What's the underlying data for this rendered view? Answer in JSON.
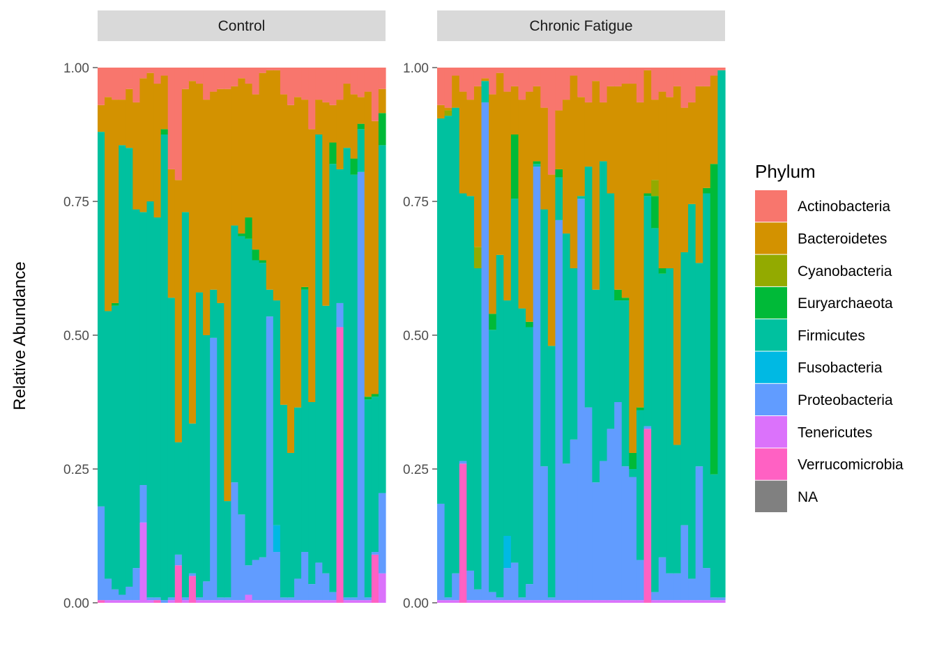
{
  "chart_data": {
    "type": "bar",
    "stacked": true,
    "ylabel": "Relative Abundance",
    "xlabel": "",
    "ylim": [
      0,
      1
    ],
    "yticks": [
      "0.00",
      "0.25",
      "0.50",
      "0.75",
      "1.00"
    ],
    "legend": {
      "title": "Phylum",
      "placement": "right",
      "entries": [
        {
          "name": "Actinobacteria",
          "color": "#F8766D"
        },
        {
          "name": "Bacteroidetes",
          "color": "#D39200"
        },
        {
          "name": "Cyanobacteria",
          "color": "#93AA00"
        },
        {
          "name": "Euryarchaeota",
          "color": "#00BA38"
        },
        {
          "name": "Firmicutes",
          "color": "#00C19F"
        },
        {
          "name": "Fusobacteria",
          "color": "#00B9E3"
        },
        {
          "name": "Proteobacteria",
          "color": "#619CFF"
        },
        {
          "name": "Tenericutes",
          "color": "#DB72FB"
        },
        {
          "name": "Verrucomicrobia",
          "color": "#FF61C3"
        },
        {
          "name": "NA",
          "color": "#808080"
        }
      ]
    },
    "panels": [
      {
        "label": "Control",
        "samples": [
          {
            "Verrucomicrobia": 0.005,
            "Proteobacteria": 0.175,
            "Firmicutes": 0.7,
            "Bacteroidetes": 0.05,
            "Actinobacteria": 0.07
          },
          {
            "Tenericutes": 0.005,
            "Proteobacteria": 0.04,
            "Firmicutes": 0.5,
            "Bacteroidetes": 0.4,
            "Actinobacteria": 0.055
          },
          {
            "Tenericutes": 0.005,
            "Proteobacteria": 0.02,
            "Firmicutes": 0.53,
            "Euryarchaeota": 0.005,
            "Bacteroidetes": 0.38,
            "Actinobacteria": 0.06
          },
          {
            "Tenericutes": 0.005,
            "Proteobacteria": 0.01,
            "Firmicutes": 0.84,
            "Bacteroidetes": 0.085,
            "Actinobacteria": 0.06
          },
          {
            "Tenericutes": 0.005,
            "Proteobacteria": 0.025,
            "Firmicutes": 0.82,
            "Bacteroidetes": 0.11,
            "Actinobacteria": 0.04
          },
          {
            "Tenericutes": 0.005,
            "Proteobacteria": 0.06,
            "Firmicutes": 0.67,
            "Bacteroidetes": 0.2,
            "Actinobacteria": 0.065
          },
          {
            "Tenericutes": 0.15,
            "Proteobacteria": 0.07,
            "Firmicutes": 0.51,
            "Bacteroidetes": 0.25,
            "Actinobacteria": 0.02
          },
          {
            "Tenericutes": 0.005,
            "Proteobacteria": 0.005,
            "Firmicutes": 0.74,
            "Bacteroidetes": 0.24,
            "Actinobacteria": 0.01
          },
          {
            "Verrucomicrobia": 0.005,
            "Proteobacteria": 0.005,
            "Firmicutes": 0.71,
            "Bacteroidetes": 0.25,
            "Actinobacteria": 0.03
          },
          {
            "Proteobacteria": 0.005,
            "Firmicutes": 0.87,
            "Euryarchaeota": 0.01,
            "Bacteroidetes": 0.1,
            "Actinobacteria": 0.015
          },
          {
            "Tenericutes": 0.005,
            "Proteobacteria": 0.005,
            "Firmicutes": 0.56,
            "Bacteroidetes": 0.24,
            "Actinobacteria": 0.19
          },
          {
            "Verrucomicrobia": 0.07,
            "Proteobacteria": 0.02,
            "Firmicutes": 0.21,
            "Bacteroidetes": 0.49,
            "Actinobacteria": 0.21
          },
          {
            "Tenericutes": 0.005,
            "Proteobacteria": 0.005,
            "Firmicutes": 0.72,
            "Bacteroidetes": 0.23,
            "Actinobacteria": 0.04
          },
          {
            "Verrucomicrobia": 0.05,
            "Proteobacteria": 0.005,
            "Firmicutes": 0.28,
            "Bacteroidetes": 0.64,
            "Actinobacteria": 0.025
          },
          {
            "Tenericutes": 0.005,
            "Proteobacteria": 0.005,
            "Firmicutes": 0.57,
            "Bacteroidetes": 0.39,
            "Actinobacteria": 0.03
          },
          {
            "Tenericutes": 0.005,
            "Proteobacteria": 0.035,
            "Firmicutes": 0.46,
            "Bacteroidetes": 0.44,
            "Actinobacteria": 0.06
          },
          {
            "Tenericutes": 0.005,
            "Proteobacteria": 0.49,
            "Firmicutes": 0.09,
            "Bacteroidetes": 0.37,
            "Actinobacteria": 0.045
          },
          {
            "Tenericutes": 0.005,
            "Proteobacteria": 0.005,
            "Firmicutes": 0.55,
            "Bacteroidetes": 0.4,
            "Actinobacteria": 0.04
          },
          {
            "Tenericutes": 0.005,
            "Proteobacteria": 0.005,
            "Firmicutes": 0.18,
            "Bacteroidetes": 0.77,
            "Actinobacteria": 0.04
          },
          {
            "Tenericutes": 0.005,
            "Proteobacteria": 0.22,
            "Firmicutes": 0.48,
            "Bacteroidetes": 0.26,
            "Actinobacteria": 0.035
          },
          {
            "Tenericutes": 0.005,
            "Proteobacteria": 0.16,
            "Firmicutes": 0.52,
            "Euryarchaeota": 0.005,
            "Bacteroidetes": 0.29,
            "Actinobacteria": 0.02
          },
          {
            "Tenericutes": 0.015,
            "Proteobacteria": 0.055,
            "Firmicutes": 0.61,
            "Euryarchaeota": 0.04,
            "Bacteroidetes": 0.25,
            "Actinobacteria": 0.03
          },
          {
            "Tenericutes": 0.005,
            "Proteobacteria": 0.075,
            "Firmicutes": 0.56,
            "Euryarchaeota": 0.02,
            "Bacteroidetes": 0.29,
            "Actinobacteria": 0.05
          },
          {
            "Tenericutes": 0.005,
            "Proteobacteria": 0.08,
            "Firmicutes": 0.55,
            "Euryarchaeota": 0.005,
            "Bacteroidetes": 0.35,
            "Actinobacteria": 0.01
          },
          {
            "Tenericutes": 0.005,
            "Proteobacteria": 0.53,
            "Firmicutes": 0.05,
            "Bacteroidetes": 0.41,
            "Actinobacteria": 0.005
          },
          {
            "Tenericutes": 0.005,
            "Fusobacteria": 0.05,
            "Proteobacteria": 0.09,
            "Firmicutes": 0.42,
            "Bacteroidetes": 0.43,
            "Actinobacteria": 0.005
          },
          {
            "Tenericutes": 0.005,
            "Proteobacteria": 0.005,
            "Firmicutes": 0.36,
            "Bacteroidetes": 0.58,
            "Actinobacteria": 0.05
          },
          {
            "Tenericutes": 0.005,
            "Proteobacteria": 0.005,
            "Firmicutes": 0.27,
            "Bacteroidetes": 0.65,
            "Actinobacteria": 0.07
          },
          {
            "Tenericutes": 0.005,
            "Proteobacteria": 0.04,
            "Firmicutes": 0.32,
            "Bacteroidetes": 0.58,
            "Actinobacteria": 0.055
          },
          {
            "Tenericutes": 0.005,
            "Proteobacteria": 0.09,
            "Firmicutes": 0.49,
            "Euryarchaeota": 0.005,
            "Bacteroidetes": 0.35,
            "Actinobacteria": 0.06
          },
          {
            "Tenericutes": 0.005,
            "Proteobacteria": 0.03,
            "Firmicutes": 0.34,
            "Bacteroidetes": 0.51,
            "Actinobacteria": 0.115
          },
          {
            "Tenericutes": 0.005,
            "Proteobacteria": 0.07,
            "Firmicutes": 0.8,
            "Bacteroidetes": 0.065,
            "Actinobacteria": 0.06
          },
          {
            "Tenericutes": 0.005,
            "Proteobacteria": 0.05,
            "Firmicutes": 0.5,
            "Bacteroidetes": 0.38,
            "Actinobacteria": 0.065
          },
          {
            "Tenericutes": 0.005,
            "Proteobacteria": 0.015,
            "Firmicutes": 0.8,
            "Euryarchaeota": 0.04,
            "Bacteroidetes": 0.07,
            "Actinobacteria": 0.07
          },
          {
            "Verrucomicrobia": 0.515,
            "Proteobacteria": 0.045,
            "Firmicutes": 0.25,
            "Bacteroidetes": 0.13,
            "Actinobacteria": 0.06
          },
          {
            "Tenericutes": 0.005,
            "Proteobacteria": 0.005,
            "Firmicutes": 0.84,
            "Bacteroidetes": 0.12,
            "Actinobacteria": 0.03
          },
          {
            "Tenericutes": 0.005,
            "Proteobacteria": 0.005,
            "Firmicutes": 0.79,
            "Euryarchaeota": 0.03,
            "Bacteroidetes": 0.12,
            "Actinobacteria": 0.05
          },
          {
            "Tenericutes": 0.005,
            "Proteobacteria": 0.8,
            "Firmicutes": 0.08,
            "Euryarchaeota": 0.01,
            "Bacteroidetes": 0.05,
            "Actinobacteria": 0.055
          },
          {
            "Tenericutes": 0.005,
            "Proteobacteria": 0.005,
            "Firmicutes": 0.37,
            "Euryarchaeota": 0.005,
            "Bacteroidetes": 0.57,
            "Actinobacteria": 0.045
          },
          {
            "Verrucomicrobia": 0.09,
            "Proteobacteria": 0.005,
            "Firmicutes": 0.29,
            "Euryarchaeota": 0.005,
            "Bacteroidetes": 0.51,
            "Actinobacteria": 0.1
          },
          {
            "Tenericutes": 0.055,
            "Proteobacteria": 0.15,
            "Firmicutes": 0.65,
            "Euryarchaeota": 0.06,
            "Bacteroidetes": 0.045,
            "Actinobacteria": 0.04
          }
        ]
      },
      {
        "label": "Chronic Fatigue",
        "samples": [
          {
            "Tenericutes": 0.005,
            "Proteobacteria": 0.18,
            "Firmicutes": 0.72,
            "Bacteroidetes": 0.025,
            "Actinobacteria": 0.07
          },
          {
            "Tenericutes": 0.005,
            "Proteobacteria": 0.005,
            "Firmicutes": 0.9,
            "Cyanobacteria": 0.01,
            "Bacteroidetes": 0.005,
            "Actinobacteria": 0.075
          },
          {
            "Tenericutes": 0.005,
            "Proteobacteria": 0.05,
            "Firmicutes": 0.87,
            "Bacteroidetes": 0.06,
            "Actinobacteria": 0.015
          },
          {
            "Verrucomicrobia": 0.26,
            "Proteobacteria": 0.005,
            "Firmicutes": 0.5,
            "Bacteroidetes": 0.19,
            "Actinobacteria": 0.045
          },
          {
            "Tenericutes": 0.005,
            "Proteobacteria": 0.055,
            "Firmicutes": 0.7,
            "Bacteroidetes": 0.18,
            "Actinobacteria": 0.06
          },
          {
            "Tenericutes": 0.005,
            "Proteobacteria": 0.02,
            "Firmicutes": 0.6,
            "Cyanobacteria": 0.04,
            "Bacteroidetes": 0.3,
            "Actinobacteria": 0.035
          },
          {
            "Tenericutes": 0.005,
            "Proteobacteria": 0.93,
            "Firmicutes": 0.04,
            "Bacteroidetes": 0.005,
            "Actinobacteria": 0.02
          },
          {
            "Tenericutes": 0.005,
            "Proteobacteria": 0.015,
            "Firmicutes": 0.49,
            "Euryarchaeota": 0.03,
            "Bacteroidetes": 0.41,
            "Actinobacteria": 0.05
          },
          {
            "Tenericutes": 0.005,
            "Proteobacteria": 0.005,
            "Firmicutes": 0.64,
            "Bacteroidetes": 0.34,
            "Actinobacteria": 0.01
          },
          {
            "Tenericutes": 0.005,
            "Fusobacteria": 0.06,
            "Proteobacteria": 0.06,
            "Firmicutes": 0.44,
            "Bacteroidetes": 0.39,
            "Actinobacteria": 0.045
          },
          {
            "Tenericutes": 0.005,
            "Proteobacteria": 0.07,
            "Firmicutes": 0.68,
            "Euryarchaeota": 0.12,
            "Bacteroidetes": 0.09,
            "Actinobacteria": 0.035
          },
          {
            "Tenericutes": 0.005,
            "Proteobacteria": 0.005,
            "Firmicutes": 0.54,
            "Bacteroidetes": 0.39,
            "Actinobacteria": 0.06
          },
          {
            "Tenericutes": 0.005,
            "Proteobacteria": 0.03,
            "Firmicutes": 0.48,
            "Euryarchaeota": 0.01,
            "Bacteroidetes": 0.43,
            "Actinobacteria": 0.045
          },
          {
            "Tenericutes": 0.005,
            "Proteobacteria": 0.81,
            "Firmicutes": 0.005,
            "Euryarchaeota": 0.005,
            "Bacteroidetes": 0.14,
            "Actinobacteria": 0.035
          },
          {
            "Tenericutes": 0.005,
            "Proteobacteria": 0.25,
            "Firmicutes": 0.48,
            "Bacteroidetes": 0.19,
            "Actinobacteria": 0.075
          },
          {
            "Tenericutes": 0.005,
            "Proteobacteria": 0.005,
            "Firmicutes": 0.47,
            "Bacteroidetes": 0.32,
            "Actinobacteria": 0.2
          },
          {
            "Tenericutes": 0.005,
            "Proteobacteria": 0.71,
            "Firmicutes": 0.08,
            "Euryarchaeota": 0.015,
            "Bacteroidetes": 0.11,
            "Actinobacteria": 0.08
          },
          {
            "Tenericutes": 0.005,
            "Proteobacteria": 0.255,
            "Firmicutes": 0.43,
            "Bacteroidetes": 0.25,
            "Actinobacteria": 0.06
          },
          {
            "Tenericutes": 0.005,
            "Proteobacteria": 0.3,
            "Firmicutes": 0.32,
            "Bacteroidetes": 0.36,
            "Actinobacteria": 0.015
          },
          {
            "Tenericutes": 0.005,
            "Proteobacteria": 0.75,
            "Firmicutes": 0.005,
            "Bacteroidetes": 0.185,
            "Actinobacteria": 0.055
          },
          {
            "Tenericutes": 0.005,
            "Proteobacteria": 0.36,
            "Firmicutes": 0.45,
            "Bacteroidetes": 0.12,
            "Actinobacteria": 0.065
          },
          {
            "Tenericutes": 0.005,
            "Proteobacteria": 0.22,
            "Firmicutes": 0.36,
            "Bacteroidetes": 0.39,
            "Actinobacteria": 0.025
          },
          {
            "Tenericutes": 0.005,
            "Proteobacteria": 0.26,
            "Firmicutes": 0.56,
            "Bacteroidetes": 0.11,
            "Actinobacteria": 0.065
          },
          {
            "Tenericutes": 0.005,
            "Proteobacteria": 0.32,
            "Firmicutes": 0.44,
            "Bacteroidetes": 0.2,
            "Actinobacteria": 0.035
          },
          {
            "Tenericutes": 0.005,
            "Proteobacteria": 0.37,
            "Firmicutes": 0.19,
            "Euryarchaeota": 0.02,
            "Bacteroidetes": 0.38,
            "Actinobacteria": 0.035
          },
          {
            "Tenericutes": 0.005,
            "Proteobacteria": 0.25,
            "Firmicutes": 0.31,
            "Euryarchaeota": 0.005,
            "Bacteroidetes": 0.4,
            "Actinobacteria": 0.03
          },
          {
            "Tenericutes": 0.005,
            "Proteobacteria": 0.23,
            "Firmicutes": 0.015,
            "Euryarchaeota": 0.03,
            "Bacteroidetes": 0.69,
            "Actinobacteria": 0.03
          },
          {
            "Tenericutes": 0.005,
            "Proteobacteria": 0.075,
            "Firmicutes": 0.28,
            "Euryarchaeota": 0.005,
            "Bacteroidetes": 0.57,
            "Actinobacteria": 0.065
          },
          {
            "Verrucomicrobia": 0.325,
            "Proteobacteria": 0.005,
            "Firmicutes": 0.43,
            "Euryarchaeota": 0.005,
            "Bacteroidetes": 0.23,
            "Actinobacteria": 0.005
          },
          {
            "Tenericutes": 0.005,
            "Proteobacteria": 0.015,
            "Firmicutes": 0.68,
            "Cyanobacteria": 0.03,
            "Euryarchaeota": 0.06,
            "Bacteroidetes": 0.15,
            "Actinobacteria": 0.06
          },
          {
            "Tenericutes": 0.005,
            "Proteobacteria": 0.08,
            "Firmicutes": 0.53,
            "Euryarchaeota": 0.01,
            "Bacteroidetes": 0.33,
            "Actinobacteria": 0.045
          },
          {
            "Tenericutes": 0.005,
            "Proteobacteria": 0.05,
            "Firmicutes": 0.57,
            "Bacteroidetes": 0.32,
            "Actinobacteria": 0.055
          },
          {
            "Tenericutes": 0.005,
            "Proteobacteria": 0.05,
            "Firmicutes": 0.24,
            "Bacteroidetes": 0.67,
            "Actinobacteria": 0.035
          },
          {
            "Tenericutes": 0.005,
            "Proteobacteria": 0.14,
            "Firmicutes": 0.51,
            "Bacteroidetes": 0.27,
            "Actinobacteria": 0.075
          },
          {
            "Tenericutes": 0.005,
            "Proteobacteria": 0.04,
            "Firmicutes": 0.7,
            "Bacteroidetes": 0.19,
            "Actinobacteria": 0.065
          },
          {
            "Tenericutes": 0.005,
            "Proteobacteria": 0.25,
            "Firmicutes": 0.38,
            "Bacteroidetes": 0.33,
            "Actinobacteria": 0.035
          },
          {
            "Tenericutes": 0.005,
            "Proteobacteria": 0.06,
            "Firmicutes": 0.7,
            "Euryarchaeota": 0.01,
            "Bacteroidetes": 0.19,
            "Actinobacteria": 0.035
          },
          {
            "Tenericutes": 0.005,
            "Proteobacteria": 0.005,
            "Firmicutes": 0.23,
            "Euryarchaeota": 0.58,
            "Bacteroidetes": 0.165,
            "Actinobacteria": 0.015
          },
          {
            "Tenericutes": 0.005,
            "Proteobacteria": 0.005,
            "Firmicutes": 0.99,
            "Actinobacteria": 0.005
          }
        ]
      }
    ]
  }
}
